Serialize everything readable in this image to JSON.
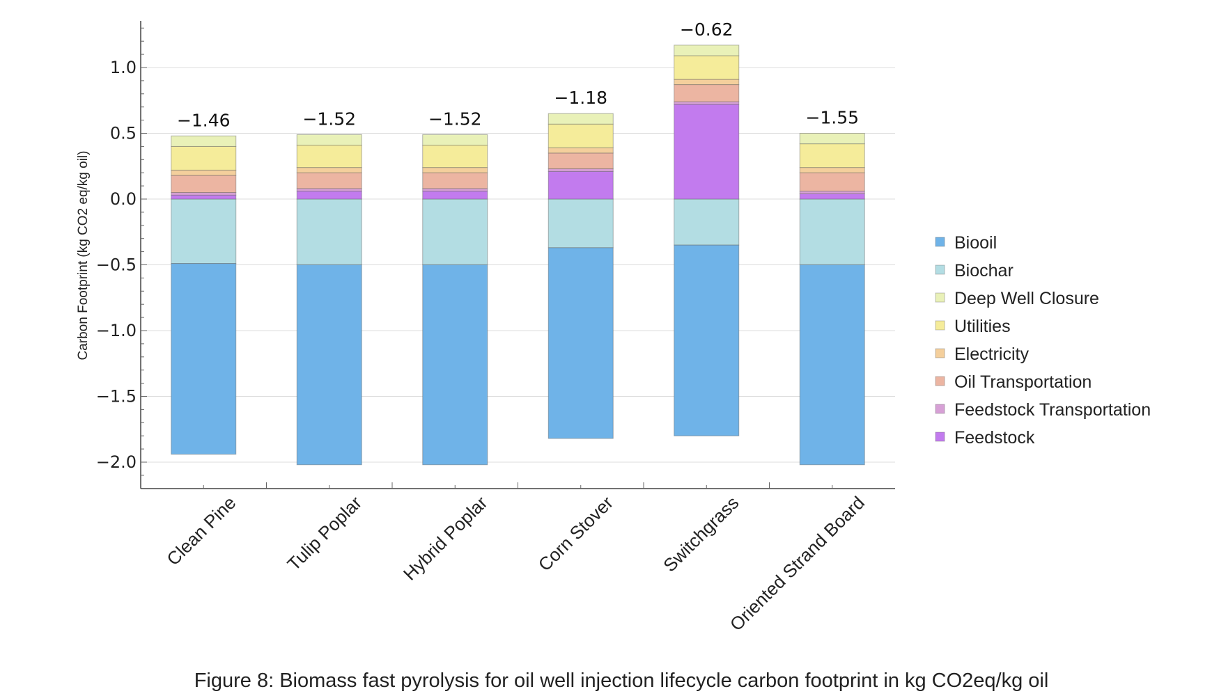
{
  "caption": "Figure 8: Biomass fast pyrolysis for oil well injection lifecycle carbon footprint in kg CO2eq/kg oil",
  "chart_data": {
    "type": "bar",
    "stacked": true,
    "title": "",
    "ylabel": "Carbon Footprint (kg CO2 eq/kg oil)",
    "xlabel": "",
    "ylim": [
      -2.2,
      1.35
    ],
    "yticks": [
      {
        "value": 1.0,
        "label": "1.0"
      },
      {
        "value": 0.5,
        "label": "0.5"
      },
      {
        "value": 0.0,
        "label": "0.0"
      },
      {
        "value": -0.5,
        "label": "−0.5"
      },
      {
        "value": -1.0,
        "label": "−1.0"
      },
      {
        "value": -1.5,
        "label": "−1.5"
      },
      {
        "value": -2.0,
        "label": "−2.0"
      }
    ],
    "grid": true,
    "legend_position": "right",
    "categories": [
      "Clean Pine",
      "Tulip Poplar",
      "Hybrid Poplar",
      "Corn Stover",
      "Switchgrass",
      "Oriented Strand Board"
    ],
    "totals": [
      "−1.46",
      "−1.52",
      "−1.52",
      "−1.18",
      "−0.62",
      "−1.55"
    ],
    "series": [
      {
        "name": "Biooil",
        "color": "#6fb3e8",
        "values": [
          -1.45,
          -1.52,
          -1.52,
          -1.45,
          -1.45,
          -1.52
        ]
      },
      {
        "name": "Biochar",
        "color": "#b3dde3",
        "values": [
          -0.49,
          -0.5,
          -0.5,
          -0.37,
          -0.35,
          -0.5
        ]
      },
      {
        "name": "Deep Well Closure",
        "color": "#e9f1b8",
        "values": [
          0.08,
          0.08,
          0.08,
          0.08,
          0.08,
          0.08
        ]
      },
      {
        "name": "Utilities",
        "color": "#f5ec9a",
        "values": [
          0.18,
          0.17,
          0.17,
          0.18,
          0.18,
          0.18
        ]
      },
      {
        "name": "Electricity",
        "color": "#f4cf9c",
        "values": [
          0.04,
          0.04,
          0.04,
          0.04,
          0.04,
          0.04
        ]
      },
      {
        "name": "Oil Transportation",
        "color": "#ecb5a2",
        "values": [
          0.13,
          0.12,
          0.12,
          0.12,
          0.13,
          0.14
        ]
      },
      {
        "name": "Feedstock Transportation",
        "color": "#d7a0d6",
        "values": [
          0.02,
          0.02,
          0.02,
          0.02,
          0.02,
          0.02
        ]
      },
      {
        "name": "Feedstock",
        "color": "#c27bee",
        "values": [
          0.03,
          0.06,
          0.06,
          0.21,
          0.72,
          0.04
        ]
      }
    ],
    "stack_order": [
      "Feedstock",
      "Feedstock Transportation",
      "Oil Transportation",
      "Electricity",
      "Utilities",
      "Deep Well Closure"
    ]
  }
}
